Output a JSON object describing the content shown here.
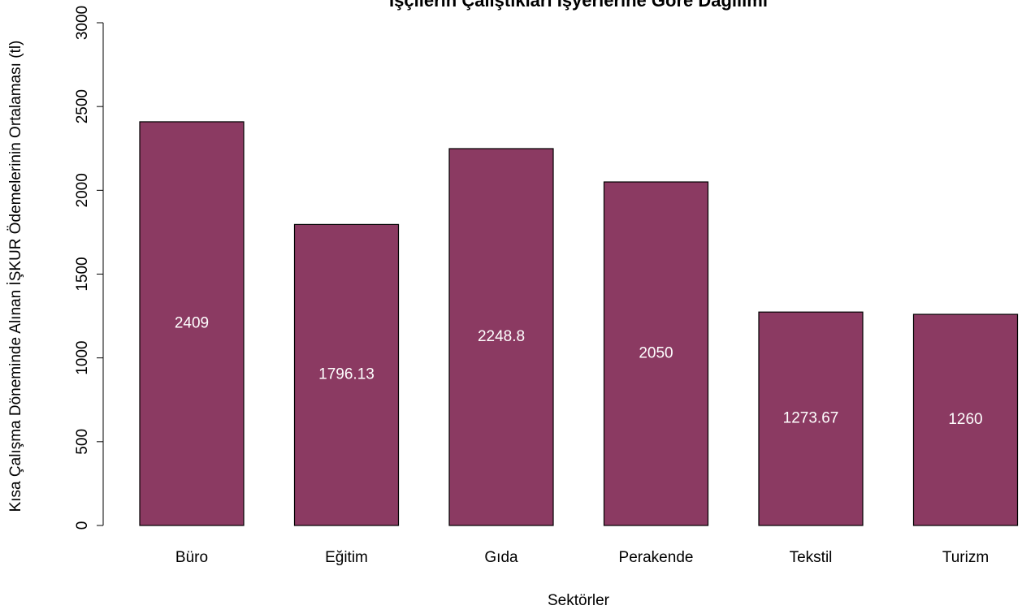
{
  "chart_data": {
    "type": "bar",
    "title": "İşçilerin Çalıştıkları İşyerlerine Göre Dağılımı",
    "x_label": "Sektörler",
    "y_label": "Kısa Çalışma Döneminde Alınan İŞKUR Ödemelerinin Ortalaması (tl)",
    "categories": [
      "Büro",
      "Eğitim",
      "Gıda",
      "Perakende",
      "Tekstil",
      "Turizm"
    ],
    "values": [
      2409,
      1796.13,
      2248.8,
      2050,
      1273.67,
      1260
    ],
    "color": "#8b3a62",
    "ylim": [
      0,
      3000
    ],
    "yticks": [
      0,
      500,
      1000,
      1500,
      2000,
      2500,
      3000
    ]
  }
}
